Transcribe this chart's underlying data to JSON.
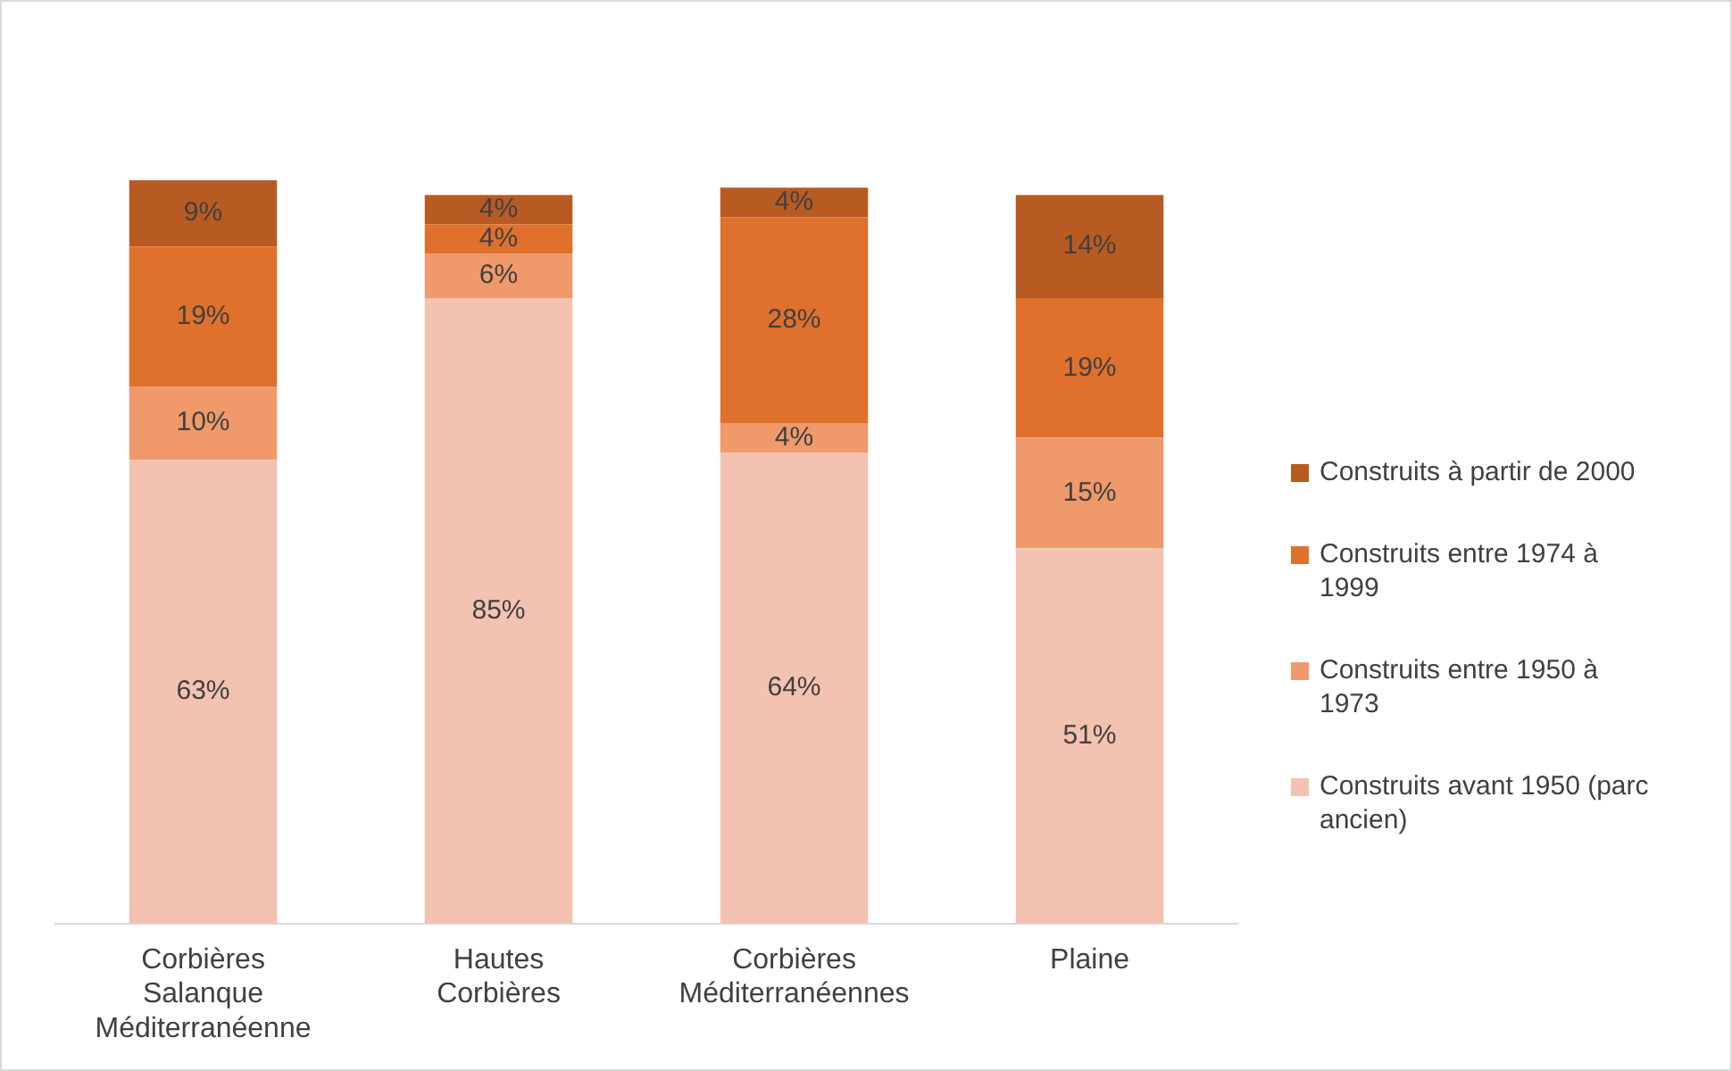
{
  "chart_data": {
    "type": "bar",
    "stacked": true,
    "legend": "right",
    "categories": [
      "Corbières Salanque Méditerranéenne",
      "Hautes Corbières",
      "Corbières Méditerranéennes",
      "Plaine"
    ],
    "series": [
      {
        "name": "Construits avant 1950 (parc ancien)",
        "color": "#f4c2b0",
        "values": [
          63,
          85,
          64,
          51
        ],
        "value_labels": [
          "63%",
          "85%",
          "64%",
          "51%"
        ]
      },
      {
        "name": "Construits entre 1950 à 1973",
        "color": "#f0996b",
        "values": [
          10,
          6,
          4,
          15
        ],
        "value_labels": [
          "10%",
          "6%",
          "4%",
          "15%"
        ]
      },
      {
        "name": "Construits entre 1974 à 1999",
        "color": "#e0712c",
        "values": [
          19,
          4,
          28,
          19
        ],
        "value_labels": [
          "19%",
          "4%",
          "28%",
          "19%"
        ]
      },
      {
        "name": "Construits à partir de 2000",
        "color": "#b85b22",
        "values": [
          9,
          4,
          4,
          14
        ],
        "value_labels": [
          "9%",
          "4%",
          "4%",
          "14%"
        ]
      }
    ]
  }
}
